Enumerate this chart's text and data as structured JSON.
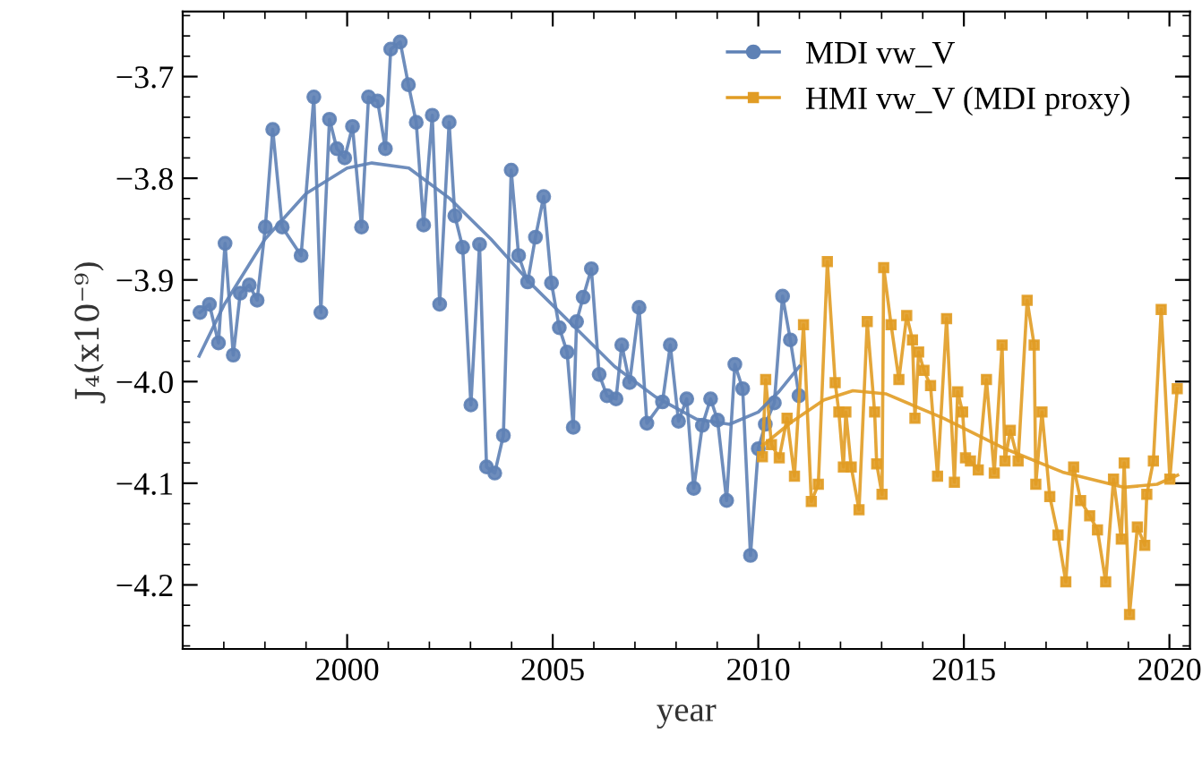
{
  "chart_data": {
    "type": "line",
    "xlabel": "year",
    "ylabel": "J₄(x10⁻⁹)",
    "xlim": [
      1996.0,
      2020.5
    ],
    "ylim": [
      -4.263,
      -3.636
    ],
    "xticks": [
      {
        "value": 1996,
        "label": null
      },
      {
        "value": 1997,
        "label": null
      },
      {
        "value": 1998,
        "label": null
      },
      {
        "value": 1999,
        "label": null
      },
      2000,
      {
        "value": 2001,
        "label": null
      },
      {
        "value": 2002,
        "label": null
      },
      {
        "value": 2003,
        "label": null
      },
      {
        "value": 2004,
        "label": null
      },
      2005,
      {
        "value": 2006,
        "label": null
      },
      {
        "value": 2007,
        "label": null
      },
      {
        "value": 2008,
        "label": null
      },
      {
        "value": 2009,
        "label": null
      },
      2010,
      {
        "value": 2011,
        "label": null
      },
      {
        "value": 2012,
        "label": null
      },
      {
        "value": 2013,
        "label": null
      },
      {
        "value": 2014,
        "label": null
      },
      2015,
      {
        "value": 2016,
        "label": null
      },
      {
        "value": 2017,
        "label": null
      },
      {
        "value": 2018,
        "label": null
      },
      {
        "value": 2019,
        "label": null
      },
      2020
    ],
    "yticks": [
      {
        "value": -4.26,
        "label": null
      },
      {
        "value": -4.24,
        "label": null
      },
      {
        "value": -4.22,
        "label": null
      },
      {
        "value": -4.2,
        "label": "−4.2"
      },
      {
        "value": -4.18,
        "label": null
      },
      {
        "value": -4.16,
        "label": null
      },
      {
        "value": -4.14,
        "label": null
      },
      {
        "value": -4.12,
        "label": null
      },
      {
        "value": -4.1,
        "label": "−4.1"
      },
      {
        "value": -4.08,
        "label": null
      },
      {
        "value": -4.06,
        "label": null
      },
      {
        "value": -4.04,
        "label": null
      },
      {
        "value": -4.02,
        "label": null
      },
      {
        "value": -4.0,
        "label": "−4.0"
      },
      {
        "value": -3.98,
        "label": null
      },
      {
        "value": -3.96,
        "label": null
      },
      {
        "value": -3.94,
        "label": null
      },
      {
        "value": -3.92,
        "label": null
      },
      {
        "value": -3.9,
        "label": "−3.9"
      },
      {
        "value": -3.88,
        "label": null
      },
      {
        "value": -3.86,
        "label": null
      },
      {
        "value": -3.84,
        "label": null
      },
      {
        "value": -3.82,
        "label": null
      },
      {
        "value": -3.8,
        "label": "−3.8"
      },
      {
        "value": -3.78,
        "label": null
      },
      {
        "value": -3.76,
        "label": null
      },
      {
        "value": -3.74,
        "label": null
      },
      {
        "value": -3.72,
        "label": null
      },
      {
        "value": -3.7,
        "label": "−3.7"
      },
      {
        "value": -3.68,
        "label": null
      },
      {
        "value": -3.66,
        "label": null
      },
      {
        "value": -3.64,
        "label": null
      }
    ],
    "grid": false,
    "legend": "top right",
    "series": [
      {
        "name": "MDI vw_V",
        "color": "#5e81b5",
        "marker": "circle",
        "x": [
          1996.42,
          1996.65,
          1996.87,
          1997.03,
          1997.23,
          1997.4,
          1997.62,
          1997.81,
          1998.01,
          1998.19,
          1998.42,
          1998.88,
          1999.19,
          1999.36,
          1999.57,
          1999.75,
          1999.94,
          2000.13,
          2000.35,
          2000.52,
          2000.74,
          2000.93,
          2001.06,
          2001.29,
          2001.49,
          2001.68,
          2001.86,
          2002.07,
          2002.25,
          2002.48,
          2002.62,
          2002.81,
          2003.01,
          2003.22,
          2003.39,
          2003.59,
          2003.8,
          2003.99,
          2004.17,
          2004.39,
          2004.58,
          2004.78,
          2004.97,
          2005.16,
          2005.35,
          2005.5,
          2005.58,
          2005.74,
          2005.94,
          2006.13,
          2006.32,
          2006.54,
          2006.68,
          2006.87,
          2007.1,
          2007.29,
          2007.67,
          2007.86,
          2008.06,
          2008.26,
          2008.43,
          2008.64,
          2008.84,
          2009.01,
          2009.23,
          2009.43,
          2009.62,
          2009.81,
          2010.0,
          2010.17,
          2010.39,
          2010.59,
          2010.78,
          2010.99
        ],
        "values": [
          -3.932,
          -3.924,
          -3.962,
          -3.864,
          -3.974,
          -3.913,
          -3.905,
          -3.92,
          -3.848,
          -3.752,
          -3.848,
          -3.876,
          -3.72,
          -3.932,
          -3.742,
          -3.771,
          -3.78,
          -3.749,
          -3.848,
          -3.72,
          -3.724,
          -3.771,
          -3.673,
          -3.666,
          -3.708,
          -3.745,
          -3.846,
          -3.738,
          -3.924,
          -3.745,
          -3.837,
          -3.868,
          -4.023,
          -3.865,
          -4.084,
          -4.09,
          -4.053,
          -3.792,
          -3.876,
          -3.902,
          -3.858,
          -3.818,
          -3.903,
          -3.947,
          -3.971,
          -4.045,
          -3.941,
          -3.917,
          -3.889,
          -3.993,
          -4.014,
          -4.017,
          -3.964,
          -4.001,
          -3.927,
          -4.041,
          -4.02,
          -3.964,
          -4.039,
          -4.017,
          -4.105,
          -4.043,
          -4.017,
          -4.038,
          -4.117,
          -3.983,
          -4.007,
          -4.171,
          -4.066,
          -4.042,
          -4.021,
          -3.916,
          -3.959,
          -4.014
        ]
      },
      {
        "name": "HMI vw_V (MDI proxy)",
        "color": "#e19c24",
        "marker": "square",
        "x": [
          2010.1,
          2010.18,
          2010.32,
          2010.51,
          2010.7,
          2010.88,
          2011.1,
          2011.29,
          2011.46,
          2011.68,
          2011.87,
          2011.96,
          2012.07,
          2012.13,
          2012.26,
          2012.45,
          2012.65,
          2012.83,
          2012.88,
          2013.01,
          2013.05,
          2013.23,
          2013.42,
          2013.61,
          2013.75,
          2013.81,
          2013.9,
          2014.03,
          2014.19,
          2014.36,
          2014.58,
          2014.77,
          2014.85,
          2014.97,
          2015.04,
          2015.16,
          2015.35,
          2015.55,
          2015.74,
          2015.93,
          2016.0,
          2016.13,
          2016.32,
          2016.54,
          2016.71,
          2016.75,
          2016.9,
          2017.09,
          2017.29,
          2017.48,
          2017.67,
          2017.84,
          2018.06,
          2018.25,
          2018.45,
          2018.64,
          2018.83,
          2018.9,
          2019.03,
          2019.22,
          2019.4,
          2019.45,
          2019.61,
          2019.8,
          2020.01,
          2020.19
        ],
        "values": [
          -4.074,
          -3.998,
          -4.062,
          -4.075,
          -4.036,
          -4.093,
          -3.944,
          -4.118,
          -4.101,
          -3.882,
          -4.001,
          -4.03,
          -4.084,
          -4.03,
          -4.084,
          -4.126,
          -3.941,
          -4.03,
          -4.081,
          -4.111,
          -3.888,
          -3.944,
          -3.998,
          -3.935,
          -3.959,
          -4.036,
          -3.971,
          -3.989,
          -4.004,
          -4.093,
          -3.938,
          -4.099,
          -4.01,
          -4.03,
          -4.075,
          -4.078,
          -4.087,
          -3.998,
          -4.09,
          -3.964,
          -4.078,
          -4.048,
          -4.078,
          -3.92,
          -3.964,
          -4.101,
          -4.03,
          -4.113,
          -4.151,
          -4.197,
          -4.084,
          -4.117,
          -4.132,
          -4.146,
          -4.197,
          -4.096,
          -4.155,
          -4.08,
          -4.229,
          -4.143,
          -4.161,
          -4.111,
          -4.078,
          -3.929,
          -4.096,
          -4.007
        ]
      },
      {
        "color": "#5e81b5",
        "marker": "none",
        "x": [
          1996.4,
          1997.0,
          1998.0,
          1999.0,
          2000.0,
          2000.6,
          2001.5,
          2002.5,
          2003.5,
          2004.5,
          2005.5,
          2006.5,
          2007.5,
          2008.5,
          2009.3,
          2010.0,
          2010.5,
          2011.0
        ],
        "values": [
          -3.975,
          -3.925,
          -3.86,
          -3.815,
          -3.79,
          -3.785,
          -3.79,
          -3.82,
          -3.86,
          -3.905,
          -3.945,
          -3.985,
          -4.015,
          -4.037,
          -4.042,
          -4.03,
          -4.01,
          -3.985
        ]
      },
      {
        "color": "#e19c24",
        "marker": "none",
        "x": [
          2010.1,
          2010.8,
          2011.6,
          2012.3,
          2013.1,
          2014.5,
          2016.0,
          2017.4,
          2018.9,
          2019.7,
          2020.2
        ],
        "values": [
          -4.063,
          -4.04,
          -4.018,
          -4.009,
          -4.012,
          -4.036,
          -4.066,
          -4.089,
          -4.104,
          -4.101,
          -4.092
        ]
      }
    ]
  }
}
